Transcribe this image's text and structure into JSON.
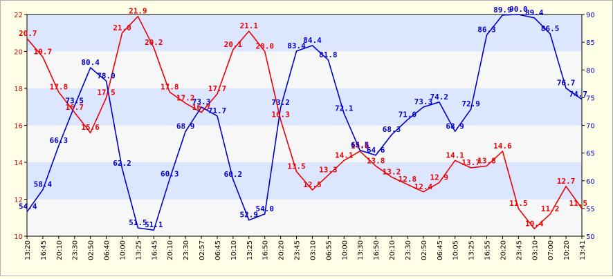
{
  "chart_data": {
    "type": "line",
    "x": [
      "13:20",
      "16:45",
      "20:10",
      "23:30",
      "02:50",
      "06:40",
      "10:00",
      "13:25",
      "16:45",
      "20:10",
      "23:30",
      "02:57",
      "06:45",
      "10:10",
      "13:25",
      "16:50",
      "20:20",
      "23:45",
      "03:10",
      "06:55",
      "10:00",
      "13:30",
      "16:50",
      "20:10",
      "23:30",
      "02:50",
      "06:45",
      "10:05",
      "13:25",
      "16:55",
      "20:20",
      "23:45",
      "03:10",
      "07:00",
      "10:20",
      "13:41"
    ],
    "x_tick_labels": [
      "13:20",
      "16:45",
      "20:10",
      "23:30",
      "02:50",
      "06:40",
      "10:00",
      "13:25",
      "16:45",
      "20:10",
      "23:30",
      "02:57",
      "06:45",
      "10:10",
      "13:25",
      "16:50",
      "20:20",
      "23:45",
      "03:10",
      "06:55",
      "10:00",
      "13:30",
      "16:50",
      "20:10",
      "23:30",
      "02:50",
      "06:45",
      "10:05",
      "13:25",
      "16:55",
      "20:20",
      "23:45",
      "03:10",
      "07:00",
      "10:20",
      "13:41"
    ],
    "series": [
      {
        "axis": "left",
        "color": "#ee0000",
        "values": [
          20.7,
          19.7,
          17.8,
          16.7,
          15.6,
          17.5,
          21.0,
          21.9,
          20.2,
          17.8,
          17.2,
          16.7,
          17.7,
          20.1,
          21.1,
          20.0,
          16.3,
          13.5,
          12.5,
          13.3,
          14.1,
          14.6,
          13.8,
          13.2,
          12.8,
          12.4,
          12.9,
          14.1,
          13.7,
          13.8,
          14.6,
          11.5,
          10.4,
          11.2,
          12.7,
          11.5
        ],
        "labels": [
          "20.7",
          "19.7",
          "17.8",
          "16.7",
          "15.6",
          "17.5",
          "21.0",
          "21.9",
          "20.2",
          "17.8",
          "17.2",
          "16.7",
          "17.7",
          "20.1",
          "21.1",
          "20.0",
          "16.3",
          "13.5",
          "12.5",
          "13.3",
          "14.1",
          "14.6",
          "13.8",
          "13.2",
          "12.8",
          "12.4",
          "12.9",
          "14.1",
          "13.7",
          "13.8",
          "14.6",
          "11.5",
          "10.4",
          "11.2",
          "12.7",
          "11.5"
        ]
      },
      {
        "axis": "right",
        "color": "#0000cc",
        "values": [
          54.4,
          58.4,
          66.3,
          73.5,
          80.4,
          78.0,
          62.2,
          51.5,
          51.1,
          60.3,
          68.9,
          73.3,
          71.7,
          60.2,
          52.9,
          54.0,
          73.2,
          83.4,
          84.4,
          81.8,
          72.1,
          65.5,
          64.6,
          68.3,
          71.0,
          73.3,
          74.2,
          68.9,
          72.9,
          86.3,
          89.9,
          90.0,
          89.4,
          86.5,
          76.7,
          74.7
        ],
        "labels": [
          "54.4",
          "58.4",
          "66.3",
          "73.5",
          "80.4",
          "78.0",
          "62.2",
          "51.5",
          "51.1",
          "60.3",
          "68.9",
          "73.3",
          "71.7",
          "60.2",
          "52.9",
          "54.0",
          "73.2",
          "83.4",
          "84.4",
          "81.8",
          "72.1",
          "65.5",
          "64.6",
          "68.3",
          "71.0",
          "73.3",
          "74.2",
          "68.9",
          "72.9",
          "86.3",
          "89.9",
          "90.0",
          "89.4",
          "86.5",
          "76.7",
          "74.7"
        ]
      }
    ],
    "y_left": {
      "min": 10,
      "max": 22,
      "ticks": [
        "10",
        "12",
        "14",
        "16",
        "18",
        "20",
        "22"
      ],
      "color": "#cc0000"
    },
    "y_right": {
      "min": 50,
      "max": 90,
      "ticks": [
        "50",
        "55",
        "60",
        "65",
        "70",
        "75",
        "80",
        "85",
        "90"
      ],
      "color": "#0000aa"
    },
    "band_colors": [
      "#f7f7f7",
      "#dde6ff"
    ],
    "grid": true,
    "title": "",
    "xlabel": "",
    "ylabel": ""
  }
}
